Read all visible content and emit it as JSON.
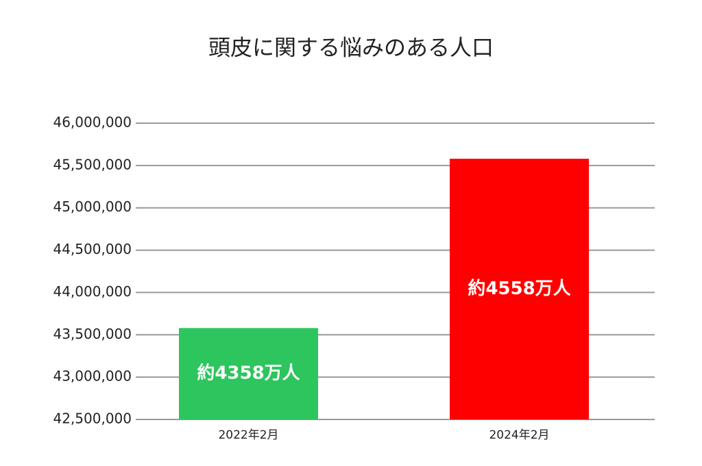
{
  "chart_data": {
    "type": "bar",
    "title": "頭皮に関する悩みのある人口",
    "categories": [
      "2022年2月",
      "2024年2月"
    ],
    "values": [
      43580000,
      45580000
    ],
    "value_labels": [
      "約4358万人",
      "約4558万人"
    ],
    "colors": [
      "#2dc55e",
      "#ff0000"
    ],
    "ylim": [
      42500000,
      46000000
    ],
    "yticks": [
      {
        "value": 42500000,
        "label": "42,500,000"
      },
      {
        "value": 43000000,
        "label": "43,000,000"
      },
      {
        "value": 43500000,
        "label": "43,500,000"
      },
      {
        "value": 44000000,
        "label": "44,000,000"
      },
      {
        "value": 44500000,
        "label": "44,500,000"
      },
      {
        "value": 45000000,
        "label": "45,000,000"
      },
      {
        "value": 45500000,
        "label": "45,500,000"
      },
      {
        "value": 46000000,
        "label": "46,000,000"
      }
    ],
    "grid": true
  }
}
